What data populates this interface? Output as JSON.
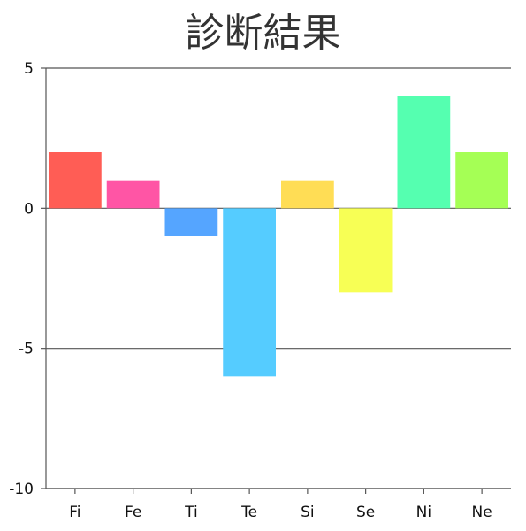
{
  "chart_data": {
    "type": "bar",
    "title": "診断結果",
    "categories": [
      "Fi",
      "Fe",
      "Ti",
      "Te",
      "Si",
      "Se",
      "Ni",
      "Ne"
    ],
    "values": [
      2,
      1,
      -1,
      -6,
      1,
      -3,
      4,
      2
    ],
    "colors": [
      "#ff5d55",
      "#ff55a5",
      "#55a5ff",
      "#55ccff",
      "#ffdd55",
      "#f7ff55",
      "#55ffb0",
      "#a5ff55"
    ],
    "ylim": [
      -10,
      5
    ],
    "yticks": [
      5,
      0,
      -5,
      -10
    ],
    "xlabel": "",
    "ylabel": "",
    "grid": true,
    "legend": "none"
  }
}
